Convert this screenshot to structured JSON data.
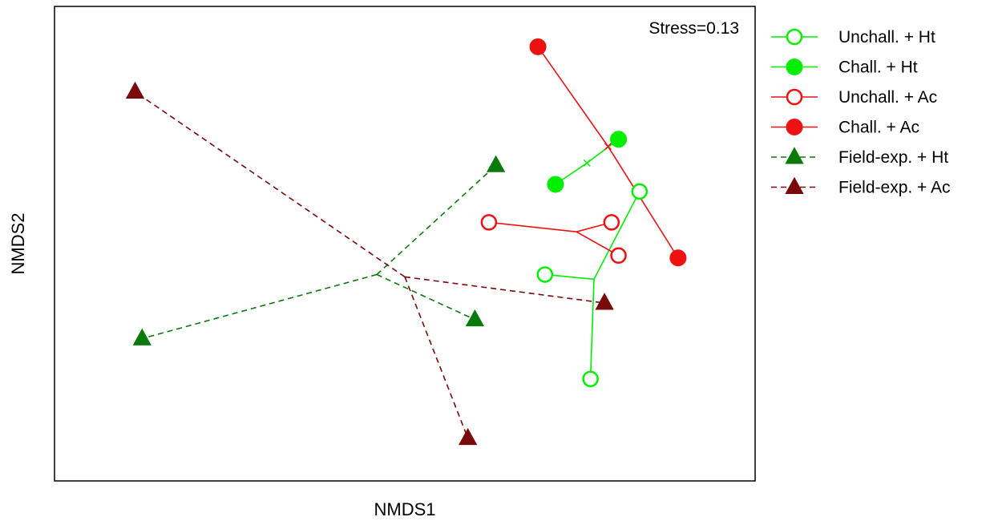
{
  "chart_data": {
    "type": "scatter",
    "title": "",
    "xlabel": "NMDS1",
    "ylabel": "NMDS2",
    "xlim": [
      0,
      100
    ],
    "ylim": [
      0,
      100
    ],
    "axis_ticks": false,
    "grid": false,
    "legend_position": "right-outside",
    "annotation": "Stress=0.13",
    "series": [
      {
        "name": "Unchall. + Ht",
        "color": "#00ee00",
        "marker": "open-circle",
        "line": "solid",
        "centroid": [
          77.0,
          42.5
        ],
        "points": [
          [
            70.0,
            43.5
          ],
          [
            83.5,
            61.0
          ],
          [
            76.5,
            21.5
          ]
        ]
      },
      {
        "name": "Chall. + Ht",
        "color": "#00ee00",
        "marker": "filled-circle",
        "line": "solid",
        "centroid": [
          76.0,
          67.0
        ],
        "points": [
          [
            71.5,
            62.5
          ],
          [
            80.5,
            72.0
          ]
        ]
      },
      {
        "name": "Unchall. + Ac",
        "color": "#ee1111",
        "marker": "open-circle",
        "line": "solid",
        "centroid": [
          74.5,
          52.5
        ],
        "points": [
          [
            62.0,
            54.5
          ],
          [
            79.5,
            54.5
          ],
          [
            80.5,
            47.5
          ]
        ]
      },
      {
        "name": "Chall. + Ac",
        "color": "#ee1111",
        "marker": "filled-circle",
        "line": "solid",
        "centroid": [
          79.0,
          70.5
        ],
        "points": [
          [
            69.0,
            91.5
          ],
          [
            89.0,
            47.0
          ]
        ]
      },
      {
        "name": "Field-exp. + Ht",
        "color": "#0a7a0a",
        "marker": "filled-triangle",
        "line": "dashed",
        "centroid": [
          46.0,
          43.5
        ],
        "points": [
          [
            63.0,
            66.5
          ],
          [
            60.0,
            34.0
          ],
          [
            12.5,
            30.0
          ]
        ]
      },
      {
        "name": "Field-exp. + Ac",
        "color": "#7a0a0a",
        "marker": "filled-triangle",
        "line": "dashed",
        "centroid": [
          50.0,
          43.0
        ],
        "points": [
          [
            11.5,
            82.0
          ],
          [
            78.5,
            37.5
          ],
          [
            59.0,
            9.0
          ]
        ]
      }
    ]
  }
}
